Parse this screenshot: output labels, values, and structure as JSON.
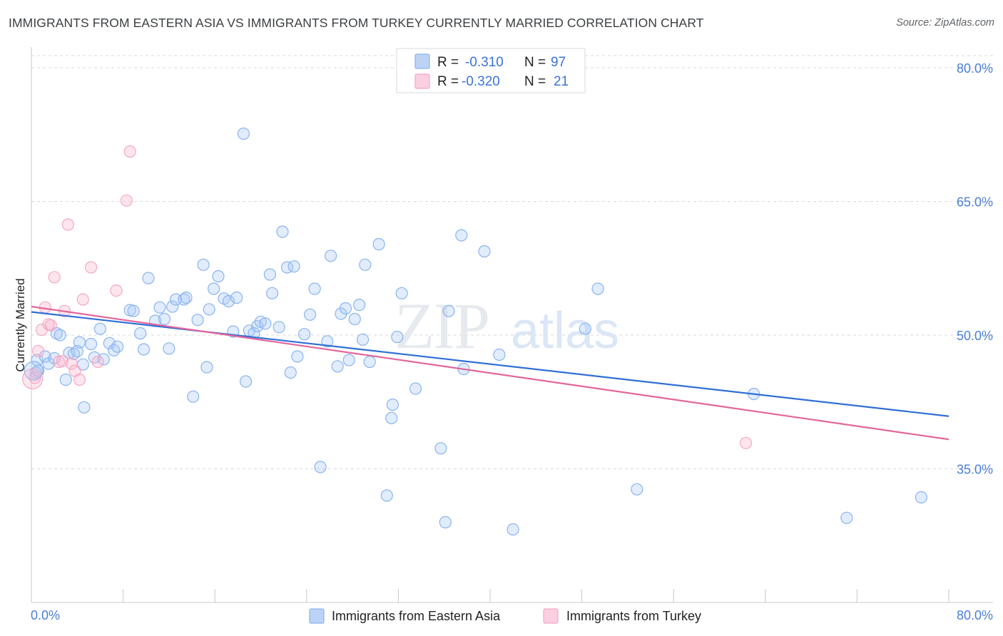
{
  "chart_data": {
    "type": "scatter",
    "title": "IMMIGRANTS FROM EASTERN ASIA VS IMMIGRANTS FROM TURKEY CURRENTLY MARRIED CORRELATION CHART",
    "source": "Source: ZipAtlas.com",
    "xlabel": "",
    "ylabel": "Currently Married",
    "xlim": [
      0,
      80
    ],
    "ylim": [
      20,
      82
    ],
    "x_tick_labels": [
      "0.0%",
      "80.0%"
    ],
    "y_ticks": [
      35,
      50,
      65,
      80
    ],
    "y_tick_labels": [
      "35.0%",
      "50.0%",
      "65.0%",
      "80.0%"
    ],
    "watermark": "ZIPatlas",
    "legend": {
      "entries": [
        {
          "r_label": "R =",
          "r_value": "-0.310",
          "n_label": "N =",
          "n_value": "97"
        },
        {
          "r_label": "R =",
          "r_value": "-0.320",
          "n_label": "N =",
          "n_value": "21"
        }
      ]
    },
    "series": [
      {
        "name": "Immigrants from Eastern Asia",
        "color": "#8ab4f0",
        "line_color": "#2f6fd6",
        "trend": {
          "x0": 0,
          "y0": 52.6,
          "x1": 80,
          "y1": 40.9
        },
        "points": [
          [
            0.4,
            45.8
          ],
          [
            0.5,
            47.2
          ],
          [
            0.6,
            46.0
          ],
          [
            1.2,
            47.6
          ],
          [
            1.5,
            46.8
          ],
          [
            2.0,
            47.4
          ],
          [
            2.2,
            50.2
          ],
          [
            2.5,
            50.0
          ],
          [
            3.0,
            45.0
          ],
          [
            3.3,
            48.0
          ],
          [
            3.7,
            47.9
          ],
          [
            4.0,
            48.2
          ],
          [
            4.2,
            49.2
          ],
          [
            4.5,
            46.7
          ],
          [
            4.6,
            41.9
          ],
          [
            5.2,
            49.0
          ],
          [
            5.5,
            47.5
          ],
          [
            6.0,
            50.7
          ],
          [
            6.3,
            47.3
          ],
          [
            6.8,
            49.1
          ],
          [
            7.2,
            48.3
          ],
          [
            7.5,
            48.7
          ],
          [
            8.6,
            52.8
          ],
          [
            8.9,
            52.7
          ],
          [
            9.5,
            50.2
          ],
          [
            9.8,
            48.4
          ],
          [
            10.2,
            56.4
          ],
          [
            10.8,
            51.6
          ],
          [
            11.2,
            53.1
          ],
          [
            11.6,
            51.8
          ],
          [
            12.0,
            48.5
          ],
          [
            12.3,
            53.2
          ],
          [
            12.6,
            54.0
          ],
          [
            13.3,
            54.0
          ],
          [
            13.5,
            54.2
          ],
          [
            14.1,
            43.1
          ],
          [
            14.5,
            51.7
          ],
          [
            15.0,
            57.9
          ],
          [
            15.3,
            46.4
          ],
          [
            15.5,
            52.9
          ],
          [
            15.9,
            55.2
          ],
          [
            16.3,
            56.6
          ],
          [
            16.8,
            54.1
          ],
          [
            17.2,
            53.8
          ],
          [
            17.6,
            50.4
          ],
          [
            17.9,
            54.2
          ],
          [
            18.5,
            72.6
          ],
          [
            18.7,
            44.8
          ],
          [
            19.0,
            50.5
          ],
          [
            19.4,
            50.2
          ],
          [
            19.7,
            51.0
          ],
          [
            20.0,
            51.5
          ],
          [
            20.4,
            51.3
          ],
          [
            20.8,
            56.8
          ],
          [
            21.0,
            54.7
          ],
          [
            21.6,
            50.9
          ],
          [
            21.9,
            61.6
          ],
          [
            22.3,
            57.6
          ],
          [
            22.6,
            45.8
          ],
          [
            22.9,
            57.7
          ],
          [
            23.2,
            47.6
          ],
          [
            23.8,
            50.1
          ],
          [
            24.3,
            52.3
          ],
          [
            24.7,
            55.2
          ],
          [
            25.2,
            35.2
          ],
          [
            25.8,
            49.3
          ],
          [
            26.1,
            58.9
          ],
          [
            26.7,
            46.5
          ],
          [
            27.0,
            52.4
          ],
          [
            27.4,
            53.0
          ],
          [
            27.7,
            47.2
          ],
          [
            28.2,
            51.8
          ],
          [
            28.6,
            53.4
          ],
          [
            28.9,
            49.5
          ],
          [
            29.1,
            57.9
          ],
          [
            29.5,
            47.0
          ],
          [
            30.3,
            60.2
          ],
          [
            31.0,
            32.0
          ],
          [
            31.4,
            40.7
          ],
          [
            31.5,
            42.2
          ],
          [
            31.9,
            49.8
          ],
          [
            32.3,
            54.7
          ],
          [
            33.5,
            44.0
          ],
          [
            35.7,
            37.3
          ],
          [
            36.1,
            29.0
          ],
          [
            36.4,
            52.7
          ],
          [
            37.5,
            61.2
          ],
          [
            37.7,
            46.2
          ],
          [
            39.5,
            59.4
          ],
          [
            40.8,
            47.8
          ],
          [
            42.0,
            28.2
          ],
          [
            48.3,
            50.7
          ],
          [
            49.4,
            55.2
          ],
          [
            52.8,
            32.7
          ],
          [
            63.0,
            43.4
          ],
          [
            71.1,
            29.5
          ],
          [
            77.6,
            31.8
          ]
        ]
      },
      {
        "name": "Immigrants from Turkey",
        "color": "#f5a8c3",
        "line_color": "#e3669a",
        "trend": {
          "x0": 0,
          "y0": 53.2,
          "x1": 80,
          "y1": 38.3
        },
        "points": [
          [
            0.3,
            45.2
          ],
          [
            0.6,
            48.2
          ],
          [
            0.9,
            50.6
          ],
          [
            1.2,
            53.1
          ],
          [
            1.5,
            51.2
          ],
          [
            1.7,
            51.1
          ],
          [
            2.0,
            56.5
          ],
          [
            2.4,
            47.0
          ],
          [
            2.7,
            47.1
          ],
          [
            2.9,
            52.7
          ],
          [
            3.2,
            62.4
          ],
          [
            3.5,
            46.8
          ],
          [
            3.8,
            46.0
          ],
          [
            4.2,
            45.0
          ],
          [
            4.5,
            54.0
          ],
          [
            5.2,
            57.6
          ],
          [
            5.8,
            47.0
          ],
          [
            7.4,
            55.0
          ],
          [
            8.3,
            65.1
          ],
          [
            8.6,
            70.6
          ],
          [
            62.3,
            37.9
          ]
        ]
      }
    ]
  }
}
